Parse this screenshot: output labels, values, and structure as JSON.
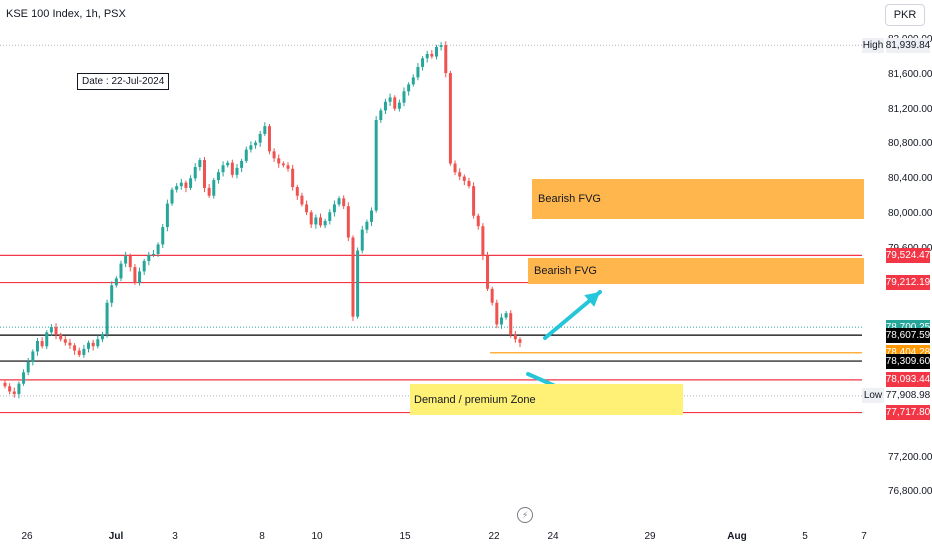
{
  "header": {
    "symbol": "KSE 100 Index, 1h, PSX",
    "currency": "PKR"
  },
  "annotations": {
    "date_box": "Date : 22-Jul-2024",
    "fvg_upper": "Bearish FVG",
    "fvg_lower": "Bearish FVG",
    "demand_zone": "Demand / premium Zone"
  },
  "colors": {
    "up": "#26a69a",
    "down": "#ef5350",
    "fvg": "#ffb74d",
    "zone": "#fff176",
    "arrow": "#26c6da",
    "level_red": "#f23645",
    "level_black": "#000000",
    "level_orange": "#ff9800"
  },
  "chart_data": {
    "type": "candlestick",
    "price_axis_ticks": [
      "82,000.00",
      "81,600.00",
      "81,200.00",
      "80,800.00",
      "80,400.00",
      "80,000.00",
      "79,600.00",
      "77,200.00",
      "76,800.00"
    ],
    "time_axis_ticks": [
      "26",
      "Jul",
      "3",
      "8",
      "10",
      "15",
      "22",
      "24",
      "29",
      "Aug",
      "5",
      "7"
    ],
    "price_tags": [
      {
        "label": "High",
        "value": "81,939.84",
        "kind": "high"
      },
      {
        "value": "79,524.47",
        "kind": "red"
      },
      {
        "value": "79,212.19",
        "kind": "red"
      },
      {
        "value": "78,700.25",
        "kind": "teal"
      },
      {
        "value": "78,607.59",
        "kind": "black"
      },
      {
        "value": "78,404.28",
        "kind": "orange"
      },
      {
        "value": "78,309.60",
        "kind": "black"
      },
      {
        "value": "78,093.44",
        "kind": "red"
      },
      {
        "label": "Low",
        "value": "77,908.98",
        "kind": "low"
      },
      {
        "value": "77,717.80",
        "kind": "red"
      }
    ],
    "levels": [
      {
        "price": 79524.47,
        "color": "red"
      },
      {
        "price": 79212.19,
        "color": "red"
      },
      {
        "price": 78607.59,
        "color": "black"
      },
      {
        "price": 78309.6,
        "color": "black"
      },
      {
        "price": 78093.44,
        "color": "red"
      },
      {
        "price": 77717.8,
        "color": "red"
      },
      {
        "price": 78404.28,
        "color": "orange"
      }
    ],
    "dotted_levels": [
      81939.84,
      78700.25,
      77908.98
    ],
    "zones": [
      {
        "name": "fvg_upper",
        "top": 80410,
        "bottom": 79960
      },
      {
        "name": "fvg_lower",
        "top": 79530,
        "bottom": 79220
      },
      {
        "name": "demand_zone",
        "top": 78090,
        "bottom": 77730
      }
    ],
    "closes": [
      78020,
      77960,
      77930,
      78050,
      78180,
      78300,
      78420,
      78540,
      78480,
      78640,
      78700,
      78610,
      78560,
      78520,
      78490,
      78430,
      78380,
      78450,
      78520,
      78480,
      78560,
      78620,
      78980,
      79180,
      79260,
      79430,
      79520,
      79390,
      79210,
      79340,
      79460,
      79530,
      79540,
      79650,
      79850,
      80120,
      80280,
      80320,
      80360,
      80300,
      80410,
      80540,
      80620,
      80300,
      80210,
      80390,
      80480,
      80560,
      80590,
      80450,
      80530,
      80610,
      80740,
      80790,
      80820,
      80920,
      81010,
      80720,
      80640,
      80580,
      80560,
      80520,
      80310,
      80210,
      80110,
      80020,
      79880,
      79960,
      79870,
      79920,
      80020,
      80110,
      80180,
      80090,
      79730,
      78820,
      79580,
      79820,
      79910,
      80040,
      81080,
      81190,
      81290,
      81340,
      81210,
      81280,
      81410,
      81490,
      81570,
      81690,
      81790,
      81840,
      81810,
      81920,
      81940,
      81620,
      80580,
      80480,
      80430,
      80380,
      80320,
      79980,
      79860,
      79520,
      79140,
      78980,
      78730,
      78810,
      78860,
      78610,
      78560,
      78520
    ]
  }
}
